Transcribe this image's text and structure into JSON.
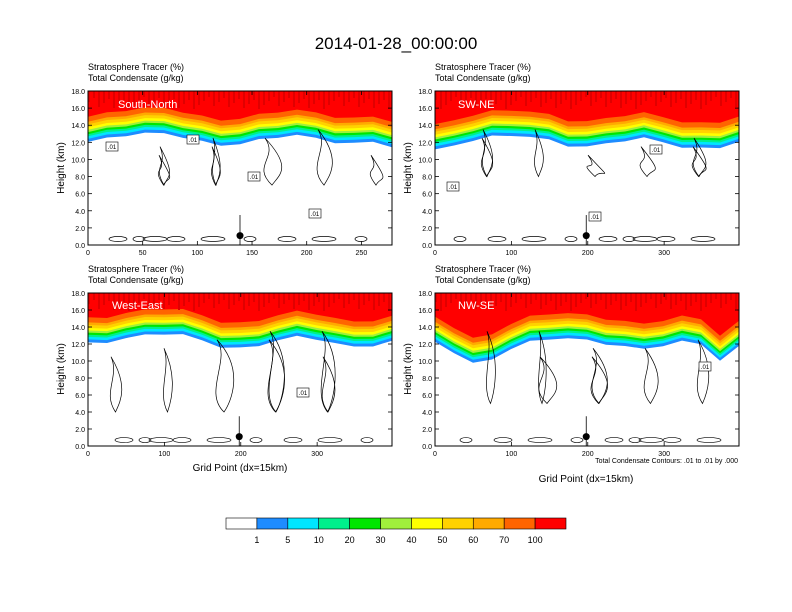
{
  "figure_title": "2014-01-28_00:00:00",
  "colors": {
    "levels": [
      "#ffffff",
      "#1e8cff",
      "#00e6ff",
      "#00f08c",
      "#00e600",
      "#a0f03c",
      "#ffff00",
      "#ffd200",
      "#ffaa00",
      "#ff6400",
      "#ff0000"
    ]
  },
  "chart_data": [
    {
      "type": "heatmap",
      "title": "South-North",
      "left_label_1": "Stratosphere Tracer   (%)",
      "left_label_2": "Total Condensate   (g/kg)",
      "ylabel": "Height (km)",
      "xlabel": "",
      "xlim": [
        0,
        278
      ],
      "ylim": [
        0,
        18
      ],
      "xticks": [
        0,
        50,
        100,
        150,
        200,
        250
      ],
      "yticks": [
        "0.0",
        "2.0",
        "4.0",
        "6.0",
        "8.0",
        "10.0",
        "12.0",
        "14.0",
        "16.0",
        "18.0"
      ],
      "marker_x": 139,
      "tracer_floor_km": [
        15.0,
        15.4,
        15.8,
        16.0,
        16.0,
        15.6,
        15.0,
        14.6,
        14.8,
        15.2,
        15.6,
        15.8,
        15.4,
        15.0,
        14.8,
        15.0,
        14.5
      ],
      "contour_labels": [
        ".01",
        ".01",
        ".01",
        ".01"
      ]
    },
    {
      "type": "heatmap",
      "title": "SW-NE",
      "left_label_1": "Stratosphere Tracer   (%)",
      "left_label_2": "Total Condensate   (g/kg)",
      "ylabel": "Height (km)",
      "xlabel": "",
      "xlim": [
        0,
        398
      ],
      "ylim": [
        0,
        18
      ],
      "xticks": [
        0,
        100,
        200,
        300
      ],
      "yticks": [
        "0.0",
        "2.0",
        "4.0",
        "6.0",
        "8.0",
        "10.0",
        "12.0",
        "14.0",
        "16.0",
        "18.0"
      ],
      "marker_x": 198,
      "tracer_floor_km": [
        14.0,
        14.6,
        15.2,
        15.6,
        15.8,
        15.6,
        15.2,
        14.6,
        14.4,
        14.8,
        15.2,
        15.4,
        15.0,
        14.4,
        14.2,
        14.4,
        15.0
      ],
      "contour_labels": [
        ".01",
        ".01",
        ".01"
      ]
    },
    {
      "type": "heatmap",
      "title": "West-East",
      "left_label_1": "Stratosphere Tracer   (%)",
      "left_label_2": "Total Condensate   (g/kg)",
      "ylabel": "Height (km)",
      "xlabel": "Grid Point (dx=15km)",
      "xlim": [
        0,
        398
      ],
      "ylim": [
        0,
        18
      ],
      "xticks": [
        0,
        100,
        200,
        300
      ],
      "yticks": [
        "0.0",
        "2.0",
        "4.0",
        "6.0",
        "8.0",
        "10.0",
        "12.0",
        "14.0",
        "16.0",
        "18.0"
      ],
      "marker_x": 198,
      "tracer_floor_km": [
        15.0,
        15.2,
        15.6,
        16.0,
        16.2,
        16.0,
        15.4,
        14.6,
        14.4,
        14.8,
        15.4,
        15.8,
        15.6,
        15.0,
        14.6,
        14.8,
        15.2
      ],
      "contour_labels": [
        ".01"
      ]
    },
    {
      "type": "heatmap",
      "title": "NW-SE",
      "left_label_1": "Stratosphere Tracer   (%)",
      "left_label_2": "Total Condensate   (g/kg)",
      "ylabel": "Height (km)",
      "xlabel": "Grid Point (dx=15km)",
      "xlim": [
        0,
        398
      ],
      "ylim": [
        0,
        18
      ],
      "xticks": [
        0,
        100,
        200,
        300
      ],
      "yticks": [
        "0.0",
        "2.0",
        "4.0",
        "6.0",
        "8.0",
        "10.0",
        "12.0",
        "14.0",
        "16.0",
        "18.0"
      ],
      "marker_x": 198,
      "tracer_floor_km": [
        15.2,
        14.0,
        12.6,
        13.2,
        14.4,
        15.2,
        15.6,
        15.6,
        15.4,
        15.0,
        14.6,
        14.4,
        14.8,
        15.2,
        15.0,
        13.0,
        14.6
      ],
      "contour_labels": [
        ".01"
      ],
      "footnote": "Total Condensate Contours: .01 to .01 by .000"
    }
  ],
  "colorbar": {
    "labels": [
      "1",
      "5",
      "10",
      "20",
      "30",
      "40",
      "50",
      "60",
      "70",
      "100"
    ]
  }
}
